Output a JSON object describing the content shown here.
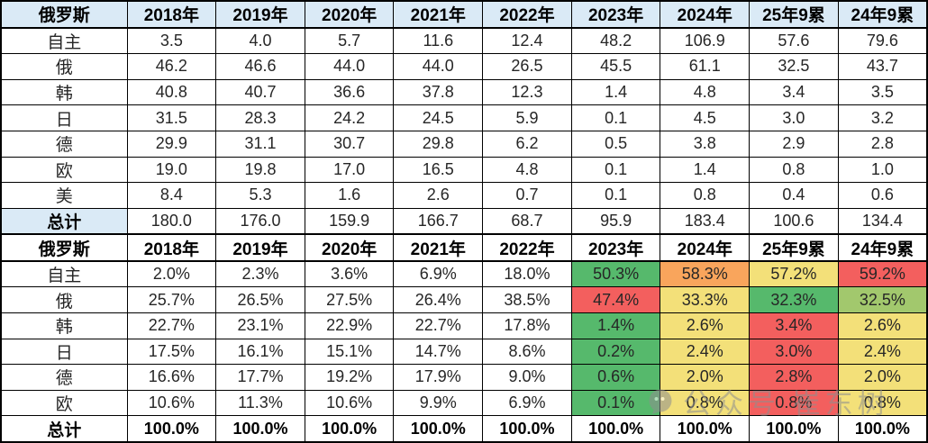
{
  "palette": {
    "header_bg": "#DAEAF6",
    "green": "#56B96C",
    "lightgreen": "#A2C86D",
    "yellow": "#F3E079",
    "orange": "#F9A55C",
    "red": "#F35F5E",
    "accent_text": "#FF0000"
  },
  "chart_data": [
    {
      "type": "table",
      "name": "sales-volume",
      "corner_label": "俄罗斯",
      "columns": [
        "2018年",
        "2019年",
        "2020年",
        "2021年",
        "2022年",
        "2023年",
        "2024年",
        "25年9累",
        "24年9累"
      ],
      "accent_column": "25年9累",
      "rows": [
        {
          "label": "自主",
          "values": [
            "3.5",
            "4.0",
            "5.7",
            "11.6",
            "12.4",
            "48.2",
            "106.9",
            "57.6",
            "79.6"
          ]
        },
        {
          "label": "俄",
          "values": [
            "46.2",
            "46.6",
            "44.0",
            "44.0",
            "26.5",
            "45.5",
            "61.1",
            "32.5",
            "43.7"
          ]
        },
        {
          "label": "韩",
          "values": [
            "40.8",
            "40.7",
            "36.6",
            "37.8",
            "12.3",
            "1.4",
            "4.8",
            "3.4",
            "3.5"
          ]
        },
        {
          "label": "日",
          "values": [
            "31.5",
            "28.3",
            "24.2",
            "24.5",
            "5.9",
            "0.1",
            "4.5",
            "3.0",
            "3.2"
          ]
        },
        {
          "label": "德",
          "values": [
            "29.9",
            "31.1",
            "30.7",
            "29.8",
            "6.2",
            "0.5",
            "3.8",
            "2.9",
            "2.8"
          ]
        },
        {
          "label": "欧",
          "values": [
            "19.0",
            "19.8",
            "17.0",
            "16.5",
            "4.8",
            "0.1",
            "1.4",
            "0.8",
            "1.0"
          ]
        },
        {
          "label": "美",
          "values": [
            "8.4",
            "5.3",
            "1.6",
            "2.6",
            "0.7",
            "0.1",
            "0.8",
            "0.4",
            "0.6"
          ]
        },
        {
          "label": "总计",
          "total": true,
          "values": [
            "180.0",
            "176.0",
            "159.9",
            "166.7",
            "68.7",
            "95.9",
            "183.4",
            "100.6",
            "134.4"
          ]
        }
      ]
    },
    {
      "type": "table",
      "name": "sales-share",
      "corner_label": "俄罗斯",
      "columns": [
        "2018年",
        "2019年",
        "2020年",
        "2021年",
        "2022年",
        "2023年",
        "2024年",
        "25年9累",
        "24年9累"
      ],
      "accent_column": "25年9累",
      "rows": [
        {
          "label": "自主",
          "values": [
            "2.0%",
            "2.3%",
            "3.6%",
            "6.9%",
            "18.0%",
            "50.3%",
            "58.3%",
            "57.2%",
            "59.2%"
          ],
          "fills": [
            "",
            "",
            "",
            "",
            "",
            "green",
            "orange",
            "yellow",
            "red"
          ]
        },
        {
          "label": "俄",
          "values": [
            "25.7%",
            "26.5%",
            "27.5%",
            "26.4%",
            "38.5%",
            "47.4%",
            "33.3%",
            "32.3%",
            "32.5%"
          ],
          "fills": [
            "",
            "",
            "",
            "",
            "",
            "red",
            "yellow",
            "green",
            "lightgreen"
          ]
        },
        {
          "label": "韩",
          "values": [
            "22.7%",
            "23.1%",
            "22.9%",
            "22.7%",
            "17.8%",
            "1.4%",
            "2.6%",
            "3.4%",
            "2.6%"
          ],
          "fills": [
            "",
            "",
            "",
            "",
            "",
            "green",
            "yellow",
            "red",
            "yellow"
          ]
        },
        {
          "label": "日",
          "values": [
            "17.5%",
            "16.1%",
            "15.1%",
            "14.7%",
            "8.6%",
            "0.2%",
            "2.4%",
            "3.0%",
            "2.4%"
          ],
          "fills": [
            "",
            "",
            "",
            "",
            "",
            "green",
            "yellow",
            "red",
            "yellow"
          ]
        },
        {
          "label": "德",
          "values": [
            "16.6%",
            "17.7%",
            "19.2%",
            "17.9%",
            "9.0%",
            "0.6%",
            "2.0%",
            "2.8%",
            "2.0%"
          ],
          "fills": [
            "",
            "",
            "",
            "",
            "",
            "green",
            "yellow",
            "red",
            "yellow"
          ]
        },
        {
          "label": "欧",
          "values": [
            "10.6%",
            "11.3%",
            "10.6%",
            "9.9%",
            "6.9%",
            "0.1%",
            "0.8%",
            "0.8%",
            "0.8%"
          ],
          "fills": [
            "",
            "",
            "",
            "",
            "",
            "green",
            "yellow",
            "red",
            "yellow"
          ]
        },
        {
          "label": "总计",
          "total": true,
          "values": [
            "100.0%",
            "100.0%",
            "100.0%",
            "100.0%",
            "100.0%",
            "100.0%",
            "100.0%",
            "100.0%",
            "100.0%"
          ]
        }
      ]
    }
  ],
  "watermark": {
    "icon": "wechat-icon",
    "text": "公众号 崔东树"
  }
}
